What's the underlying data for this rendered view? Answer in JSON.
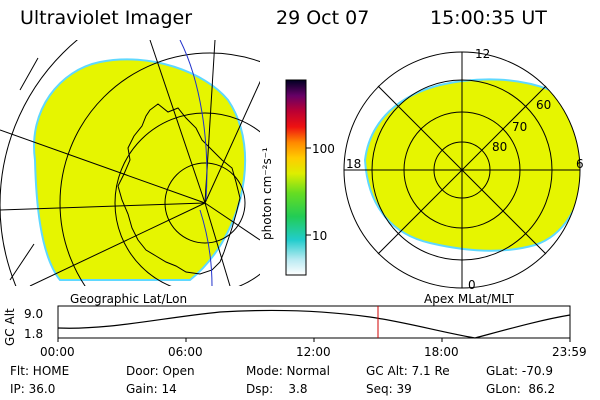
{
  "header": {
    "instrument": "Ultraviolet Imager",
    "date": "29 Oct 07",
    "time": "15:00:35 UT"
  },
  "colorbar": {
    "unit_label": "photon cm⁻²s⁻¹",
    "tick_100": "100",
    "tick_10": "10"
  },
  "left_panel": {
    "caption": "Geographic Lat/Lon"
  },
  "right_panel": {
    "caption": "Apex MLat/MLT",
    "mlt_12": "12",
    "mlt_18": "18",
    "mlt_6": "6",
    "mlt_0": "0",
    "lat_60": "60",
    "lat_70": "70",
    "lat_80": "80"
  },
  "altitude_strip": {
    "ylabel": "GC Alt",
    "ymax": "9.0",
    "ymin": "1.8",
    "xticks": [
      "00:00",
      "06:00",
      "12:00",
      "18:00",
      "23:59"
    ]
  },
  "status": {
    "flt": "Flt: HOME",
    "ip": "IP: 36.0",
    "door": "Door: Open",
    "gain": "Gain: 14",
    "mode": "Mode: Normal",
    "dsp": "Dsp:    3.8",
    "gc_alt": "GC Alt: 7.1 Re",
    "seq": "Seq: 39",
    "glat": "GLat: -70.9",
    "glon": "GLon:  86.2"
  },
  "colors": {
    "image_fill": "#e6f500",
    "image_edge": "#5fd8ff",
    "ink": "#000000",
    "marker": "#d00000"
  }
}
